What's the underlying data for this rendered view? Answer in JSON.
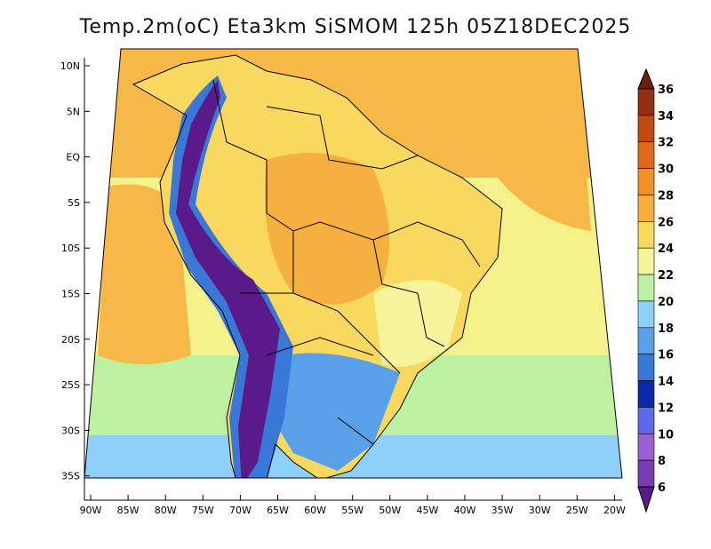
{
  "title": "Temp.2m(oC) Eta3km SiSMOM 125h 05Z18DEC2025",
  "map": {
    "lat_labels": [
      "10N",
      "5N",
      "EQ",
      "5S",
      "10S",
      "15S",
      "20S",
      "25S",
      "30S",
      "35S"
    ],
    "lon_labels": [
      "90W",
      "85W",
      "80W",
      "75W",
      "70W",
      "65W",
      "60W",
      "55W",
      "50W",
      "45W",
      "40W",
      "35W",
      "30W",
      "25W",
      "20W"
    ]
  },
  "colorbar": {
    "labels": [
      "6",
      "8",
      "10",
      "12",
      "14",
      "16",
      "18",
      "20",
      "22",
      "24",
      "26",
      "28",
      "30",
      "32",
      "34",
      "36"
    ],
    "colors": [
      "#5a1a8a",
      "#7a3ab0",
      "#9a5fd0",
      "#5a6ae8",
      "#0a2aa8",
      "#3a78d8",
      "#5aa0e6",
      "#8fd0f8",
      "#bdf0a0",
      "#f6f49a",
      "#f9d860",
      "#f6b040",
      "#f0902a",
      "#e06a1c",
      "#c04a14",
      "#903010",
      "#6a2010"
    ]
  },
  "field": {
    "ocean_north": "#f7b84a",
    "ocean_mid": "#f4f08a",
    "ocean_south": "#bdf0a0",
    "ocean_far_south": "#8fd0f8",
    "land_warm": "#f9d860",
    "land_hot": "#f6b040",
    "land_mild": "#f6f49a",
    "andes_cold": "#5a1a8a",
    "andes_mid": "#3a78d8",
    "south_cool": "#5aa0e6",
    "coast_line": "#000000"
  }
}
